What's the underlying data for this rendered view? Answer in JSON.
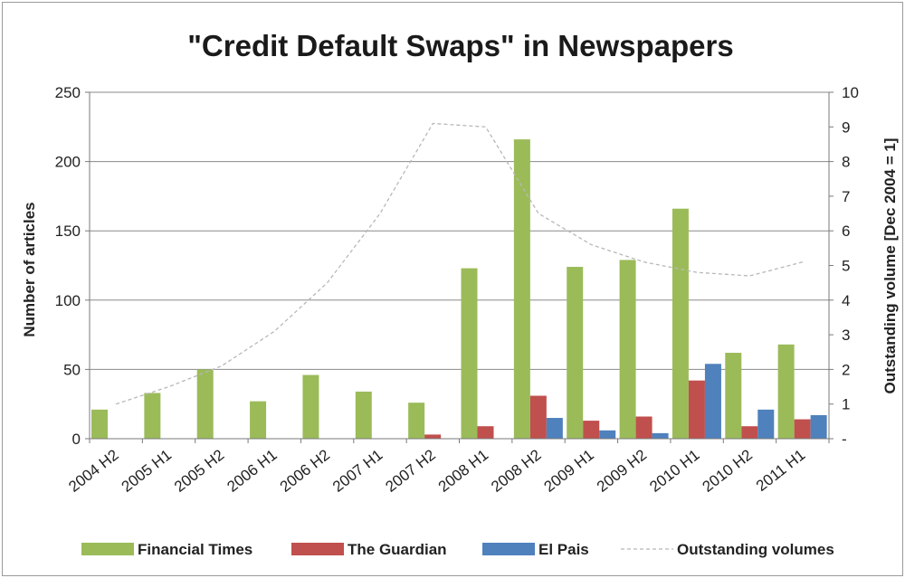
{
  "chart_data": {
    "type": "bar",
    "title": "\"Credit Default Swaps\" in Newspapers",
    "ylabel": "Number of articles",
    "y2label": "Outstanding volume [Dec 2004 = 1]",
    "ylim": [
      0,
      250
    ],
    "y2lim": [
      0,
      10
    ],
    "yticks": [
      "0",
      "50",
      "100",
      "150",
      "200",
      "250"
    ],
    "y2ticks": [
      "-",
      "1",
      "2",
      "3",
      "4",
      "5",
      "6",
      "7",
      "8",
      "9",
      "10"
    ],
    "grid": "horizontal",
    "legend_position": "bottom",
    "categories": [
      "2004 H2",
      "2005 H1",
      "2005 H2",
      "2006 H1",
      "2006 H2",
      "2007 H1",
      "2007 H2",
      "2008 H1",
      "2008 H2",
      "2009 H1",
      "2009 H2",
      "2010 H1",
      "2010 H2",
      "2011 H1"
    ],
    "series": [
      {
        "name": "Financial Times",
        "type": "bar",
        "axis": "left",
        "color": "#9bbb59",
        "values": [
          21,
          33,
          50,
          27,
          46,
          34,
          26,
          123,
          216,
          124,
          129,
          166,
          62,
          68
        ]
      },
      {
        "name": "The Guardian",
        "type": "bar",
        "axis": "left",
        "color": "#c0504d",
        "values": [
          0,
          0,
          0,
          0,
          0,
          0,
          3,
          9,
          31,
          13,
          16,
          42,
          9,
          14
        ]
      },
      {
        "name": "El Pais",
        "type": "bar",
        "axis": "left",
        "color": "#4f81bd",
        "values": [
          0,
          0,
          0,
          0,
          0,
          0,
          0,
          0,
          15,
          6,
          4,
          54,
          21,
          17
        ]
      },
      {
        "name": "Outstanding volumes",
        "type": "line",
        "axis": "right",
        "color": "#b8b8b8",
        "dashed": true,
        "values": [
          1.0,
          1.5,
          2.1,
          3.1,
          4.5,
          6.5,
          9.1,
          9.0,
          6.5,
          5.6,
          5.1,
          4.8,
          4.7,
          5.1
        ]
      }
    ]
  }
}
